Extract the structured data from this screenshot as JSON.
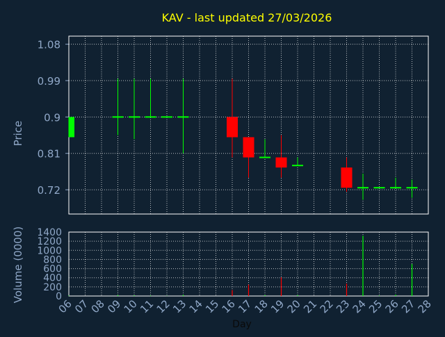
{
  "colors": {
    "background": "#102131",
    "title": "#ffff00",
    "axis_text": "#90a8c8",
    "grid": "#ffffff",
    "up": "#00ff00",
    "down": "#ff0000"
  },
  "chart_data": [
    {
      "type": "candlestick",
      "title": "KAV - last updated 27/03/2026",
      "ylabel": "Price",
      "ylim": [
        0.66,
        1.1
      ],
      "yticks": [
        0.72,
        0.81,
        0.9,
        0.99,
        1.08
      ],
      "ytick_labels": [
        "0.72",
        "0.81",
        "0.9",
        "0.99",
        "1.08"
      ],
      "grid": true,
      "days": [
        "06",
        "07",
        "08",
        "09",
        "10",
        "11",
        "12",
        "13",
        "14",
        "15",
        "16",
        "17",
        "18",
        "19",
        "20",
        "21",
        "22",
        "23",
        "24",
        "25",
        "26",
        "27",
        "28"
      ],
      "candles": [
        {
          "day": "06",
          "open": 0.85,
          "close": 0.9,
          "high": 0.9,
          "low": 0.85
        },
        {
          "day": "09",
          "open": 0.9,
          "close": 0.9,
          "high": 0.995,
          "low": 0.855
        },
        {
          "day": "10",
          "open": 0.9,
          "close": 0.9,
          "high": 0.995,
          "low": 0.845
        },
        {
          "day": "11",
          "open": 0.9,
          "close": 0.9,
          "high": 0.995,
          "low": 0.9
        },
        {
          "day": "12",
          "open": 0.9,
          "close": 0.9,
          "high": 0.9,
          "low": 0.9
        },
        {
          "day": "13",
          "open": 0.9,
          "close": 0.9,
          "high": 0.995,
          "low": 0.81
        },
        {
          "day": "16",
          "open": 0.9,
          "close": 0.85,
          "high": 0.995,
          "low": 0.8
        },
        {
          "day": "17",
          "open": 0.85,
          "close": 0.8,
          "high": 0.85,
          "low": 0.75
        },
        {
          "day": "18",
          "open": 0.8,
          "close": 0.8,
          "high": 0.845,
          "low": 0.8
        },
        {
          "day": "19",
          "open": 0.8,
          "close": 0.775,
          "high": 0.855,
          "low": 0.75
        },
        {
          "day": "20",
          "open": 0.78,
          "close": 0.78,
          "high": 0.8,
          "low": 0.78
        },
        {
          "day": "23",
          "open": 0.775,
          "close": 0.725,
          "high": 0.8,
          "low": 0.715
        },
        {
          "day": "24",
          "open": 0.725,
          "close": 0.725,
          "high": 0.76,
          "low": 0.695
        },
        {
          "day": "25",
          "open": 0.725,
          "close": 0.725,
          "high": 0.725,
          "low": 0.725
        },
        {
          "day": "26",
          "open": 0.725,
          "close": 0.725,
          "high": 0.75,
          "low": 0.725
        },
        {
          "day": "27",
          "open": 0.725,
          "close": 0.725,
          "high": 0.745,
          "low": 0.7
        }
      ]
    },
    {
      "type": "bar",
      "ylabel": "Volume (0000)",
      "xlabel": "Day",
      "ylim": [
        0,
        1400
      ],
      "yticks": [
        0,
        200,
        400,
        600,
        800,
        1000,
        1200,
        1400
      ],
      "ytick_labels": [
        "0",
        "200",
        "400",
        "600",
        "800",
        "1000",
        "1200",
        "1400"
      ],
      "grid": true,
      "categories": [
        "06",
        "07",
        "08",
        "09",
        "10",
        "11",
        "12",
        "13",
        "14",
        "15",
        "16",
        "17",
        "18",
        "19",
        "20",
        "21",
        "22",
        "23",
        "24",
        "25",
        "26",
        "27",
        "28"
      ],
      "bars": [
        {
          "day": "06",
          "volume": 10,
          "direction": "up"
        },
        {
          "day": "09",
          "volume": 20,
          "direction": "up"
        },
        {
          "day": "10",
          "volume": 15,
          "direction": "up"
        },
        {
          "day": "11",
          "volume": 10,
          "direction": "up"
        },
        {
          "day": "12",
          "volume": 5,
          "direction": "up"
        },
        {
          "day": "13",
          "volume": 25,
          "direction": "up"
        },
        {
          "day": "16",
          "volume": 130,
          "direction": "down"
        },
        {
          "day": "17",
          "volume": 250,
          "direction": "down"
        },
        {
          "day": "18",
          "volume": 20,
          "direction": "up"
        },
        {
          "day": "19",
          "volume": 410,
          "direction": "down"
        },
        {
          "day": "20",
          "volume": 20,
          "direction": "up"
        },
        {
          "day": "23",
          "volume": 270,
          "direction": "down"
        },
        {
          "day": "24",
          "volume": 1320,
          "direction": "up"
        },
        {
          "day": "25",
          "volume": 10,
          "direction": "up"
        },
        {
          "day": "26",
          "volume": 30,
          "direction": "up"
        },
        {
          "day": "27",
          "volume": 700,
          "direction": "up"
        }
      ]
    }
  ]
}
